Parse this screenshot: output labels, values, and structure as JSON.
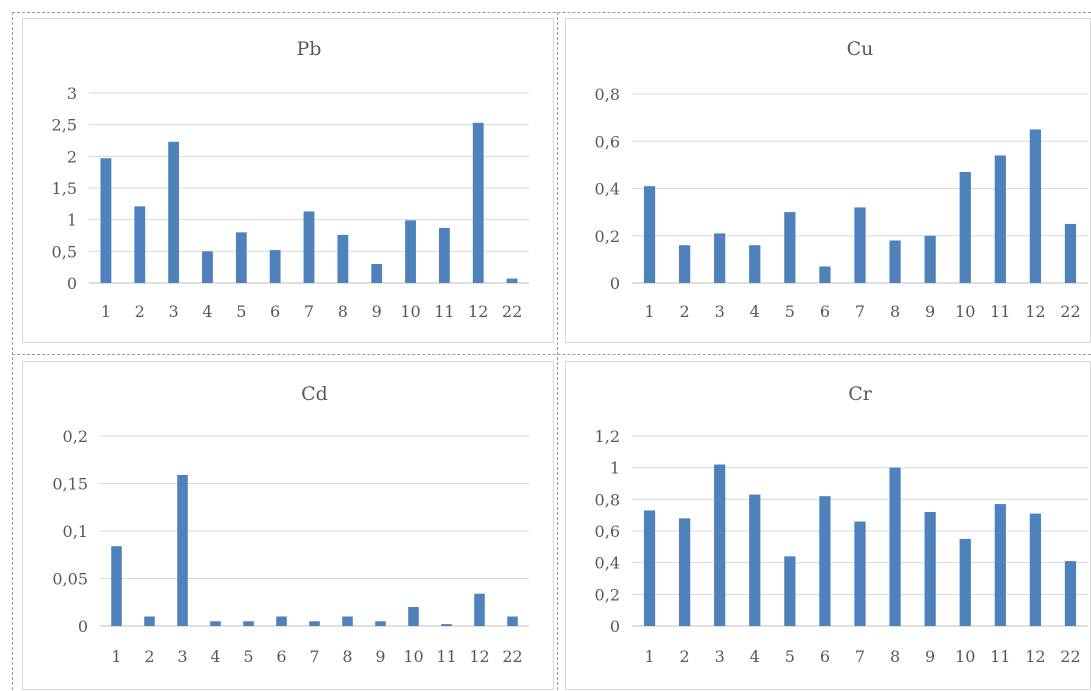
{
  "colors": {
    "bar": "#4F81BD",
    "grid": "#D9D9D9",
    "text": "#595959"
  },
  "chart_data": [
    {
      "type": "bar",
      "title": "Pb",
      "categories": [
        "1",
        "2",
        "3",
        "4",
        "5",
        "6",
        "7",
        "8",
        "9",
        "10",
        "11",
        "12",
        "22"
      ],
      "values": [
        1.97,
        1.21,
        2.23,
        0.5,
        0.8,
        0.52,
        1.13,
        0.76,
        0.3,
        0.99,
        0.87,
        2.53,
        0.07
      ],
      "ylim": [
        0,
        3
      ],
      "yticks": [
        "0",
        "0,5",
        "1",
        "1,5",
        "2",
        "2,5",
        "3"
      ],
      "grid": true
    },
    {
      "type": "bar",
      "title": "Cu",
      "categories": [
        "1",
        "2",
        "3",
        "4",
        "5",
        "6",
        "7",
        "8",
        "9",
        "10",
        "11",
        "12",
        "22"
      ],
      "values": [
        0.41,
        0.16,
        0.21,
        0.16,
        0.3,
        0.07,
        0.32,
        0.18,
        0.2,
        0.47,
        0.54,
        0.65,
        0.25
      ],
      "ylim": [
        0,
        0.8
      ],
      "yticks": [
        "0",
        "0,2",
        "0,4",
        "0,6",
        "0,8"
      ],
      "grid": true
    },
    {
      "type": "bar",
      "title": "Cd",
      "categories": [
        "1",
        "2",
        "3",
        "4",
        "5",
        "6",
        "7",
        "8",
        "9",
        "10",
        "11",
        "12",
        "22"
      ],
      "values": [
        0.084,
        0.01,
        0.159,
        0.005,
        0.005,
        0.01,
        0.005,
        0.01,
        0.005,
        0.02,
        0.002,
        0.034,
        0.01
      ],
      "ylim": [
        0,
        0.2
      ],
      "yticks": [
        "0",
        "0,05",
        "0,1",
        "0,15",
        "0,2"
      ],
      "grid": true
    },
    {
      "type": "bar",
      "title": "Cr",
      "categories": [
        "1",
        "2",
        "3",
        "4",
        "5",
        "6",
        "7",
        "8",
        "9",
        "10",
        "11",
        "12",
        "22"
      ],
      "values": [
        0.73,
        0.68,
        1.02,
        0.83,
        0.44,
        0.82,
        0.66,
        1.0,
        0.72,
        0.55,
        0.77,
        0.71,
        0.41
      ],
      "ylim": [
        0,
        1.2
      ],
      "yticks": [
        "0",
        "0,2",
        "0,4",
        "0,6",
        "0,8",
        "1",
        "1,2"
      ],
      "grid": true
    }
  ]
}
